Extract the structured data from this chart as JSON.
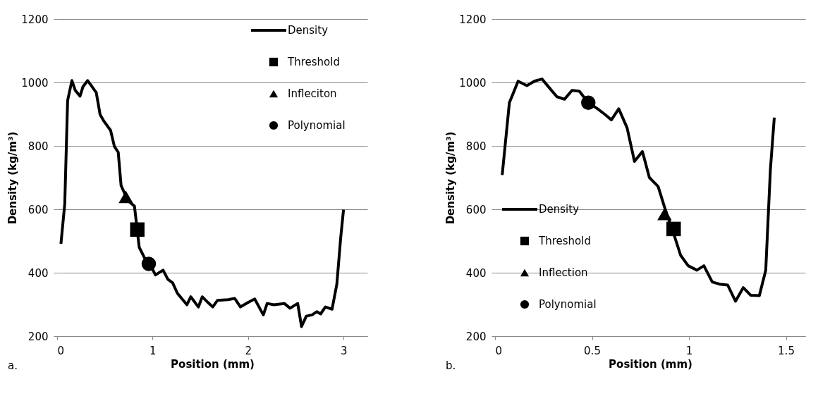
{
  "chart_data": [
    {
      "type": "line",
      "xlabel": "Position (mm)",
      "ylabel": "Density (kg/m³)",
      "xlim": [
        0,
        3.25
      ],
      "xticks": [
        0,
        1,
        2,
        3
      ],
      "ylim": [
        200,
        1200
      ],
      "yticks": [
        200,
        400,
        600,
        800,
        1000,
        1200
      ],
      "grid": "y",
      "legend": "top right",
      "annotations": [
        "a."
      ],
      "series": [
        {
          "name": "Density",
          "type": "line",
          "color": "#000000",
          "marker": "none",
          "x": [
            0.04,
            0.08,
            0.11,
            0.155,
            0.19,
            0.24,
            0.27,
            0.32,
            0.41,
            0.45,
            0.49,
            0.56,
            0.6,
            0.64,
            0.67,
            0.74,
            0.81,
            0.86,
            0.92,
            0.98,
            1.03,
            1.11,
            1.16,
            1.21,
            1.26,
            1.36,
            1.4,
            1.48,
            1.52,
            1.58,
            1.63,
            1.68,
            1.79,
            1.86,
            1.92,
            2.0,
            2.07,
            2.16,
            2.2,
            2.27,
            2.38,
            2.44,
            2.52,
            2.56,
            2.61,
            2.67,
            2.72,
            2.76,
            2.81,
            2.88,
            2.93,
            2.97,
            3.0
          ],
          "values": [
            491,
            617,
            943,
            1006,
            975,
            957,
            986,
            1006,
            968,
            899,
            878,
            849,
            798,
            780,
            675,
            628,
            610,
            480,
            444,
            422,
            393,
            408,
            379,
            368,
            335,
            299,
            324,
            292,
            324,
            306,
            292,
            313,
            315,
            319,
            292,
            306,
            317,
            267,
            303,
            299,
            303,
            288,
            303,
            230,
            263,
            267,
            277,
            270,
            292,
            285,
            364,
            509,
            599
          ]
        },
        {
          "name": "Threshold",
          "type": "scatter",
          "color": "#000000",
          "marker": "square",
          "x": [
            0.84
          ],
          "values": [
            536
          ]
        },
        {
          "name": "Infleciton",
          "type": "scatter",
          "color": "#000000",
          "marker": "triangle",
          "x": [
            0.72
          ],
          "values": [
            639
          ]
        },
        {
          "name": "Polynomial",
          "type": "scatter",
          "color": "#000000",
          "marker": "circle",
          "x": [
            0.96
          ],
          "values": [
            428
          ]
        }
      ]
    },
    {
      "type": "line",
      "xlabel": "Position (mm)",
      "ylabel": "Density (kg/m³)",
      "xlim": [
        0,
        1.6
      ],
      "xticks": [
        0,
        0.5,
        1,
        1.5
      ],
      "ylim": [
        200,
        1200
      ],
      "yticks": [
        200,
        400,
        600,
        800,
        1000,
        1200
      ],
      "grid": "y",
      "legend": "left",
      "annotations": [
        "b."
      ],
      "series": [
        {
          "name": "Density",
          "type": "line",
          "color": "#000000",
          "marker": "none",
          "x": [
            0.037,
            0.074,
            0.119,
            0.164,
            0.203,
            0.242,
            0.28,
            0.319,
            0.358,
            0.397,
            0.435,
            0.481,
            0.526,
            0.565,
            0.6,
            0.638,
            0.681,
            0.719,
            0.76,
            0.796,
            0.841,
            0.874,
            0.925,
            0.957,
            0.996,
            1.041,
            1.077,
            1.12,
            1.157,
            1.2,
            1.24,
            1.28,
            1.318,
            1.363,
            1.396,
            1.42,
            1.44
          ],
          "values": [
            708,
            936,
            1004,
            990,
            1004,
            1011,
            983,
            955,
            947,
            975,
            972,
            936,
            918,
            900,
            882,
            917,
            857,
            751,
            782,
            700,
            672,
            607,
            516,
            455,
            422,
            408,
            422,
            371,
            364,
            361,
            310,
            353,
            329,
            328,
            408,
            726,
            889
          ]
        },
        {
          "name": "Threshold",
          "type": "scatter",
          "color": "#000000",
          "marker": "square",
          "x": [
            0.921
          ],
          "values": [
            538
          ]
        },
        {
          "name": "Inflection",
          "type": "scatter",
          "color": "#000000",
          "marker": "triangle",
          "x": [
            0.874
          ],
          "values": [
            585
          ]
        },
        {
          "name": "Polynomial",
          "type": "scatter",
          "color": "#000000",
          "marker": "circle",
          "x": [
            0.481
          ],
          "values": [
            936
          ]
        }
      ]
    }
  ]
}
